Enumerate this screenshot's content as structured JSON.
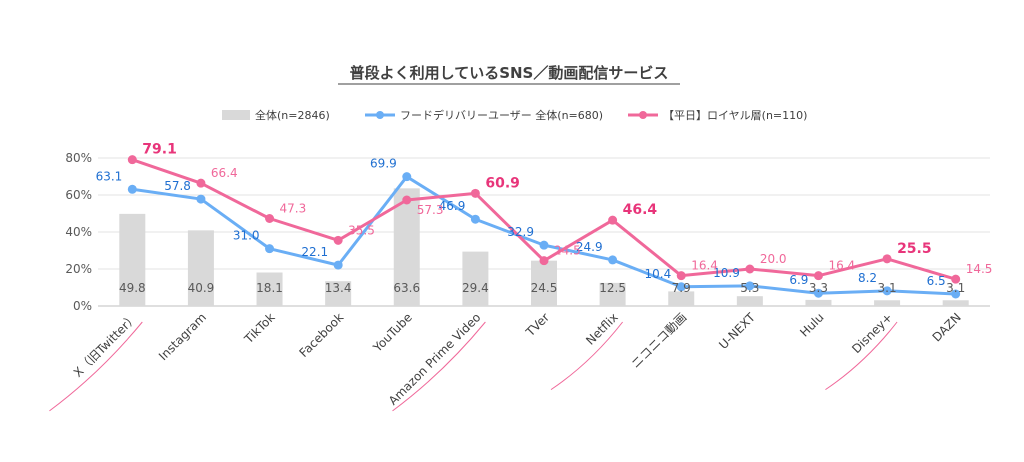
{
  "chart_data": {
    "type": "bar+line",
    "title": "普段よく利用しているSNS／動画配信サービス",
    "categories": [
      "X（旧Twitter）",
      "Instagram",
      "TikTok",
      "Facebook",
      "YouTube",
      "Amazon Prime Video",
      "TVer",
      "Netflix",
      "ニコニコ動画",
      "U-NEXT",
      "Hulu",
      "Disney+",
      "DAZN"
    ],
    "highlighted_categories": [
      "X（旧Twitter）",
      "Amazon Prime Video",
      "Netflix",
      "Disney+"
    ],
    "ylim": [
      0,
      80
    ],
    "yticks": [
      "0%",
      "20%",
      "40%",
      "60%",
      "80%"
    ],
    "grid": true,
    "legend_position": "top",
    "series": [
      {
        "name": "全体(n=2846)",
        "type": "bar",
        "color": "#d9d9d9",
        "values": [
          49.8,
          40.9,
          18.1,
          13.4,
          63.6,
          29.4,
          24.5,
          12.5,
          7.9,
          5.3,
          3.3,
          3.1,
          3.1
        ]
      },
      {
        "name": "フードデリバリーユーザー 全体(n=680)",
        "type": "line",
        "color": "#6aaef5",
        "values": [
          63.1,
          57.8,
          31.0,
          22.1,
          69.9,
          46.9,
          32.9,
          24.9,
          10.4,
          10.9,
          6.9,
          8.2,
          6.5
        ]
      },
      {
        "name": "【平日】ロイヤル層(n=110)",
        "type": "line",
        "color": "#f0689a",
        "values": [
          79.1,
          66.4,
          47.3,
          35.5,
          57.3,
          60.9,
          24.5,
          46.4,
          16.4,
          20.0,
          16.4,
          25.5,
          14.5
        ],
        "emphasized_values": [
          79.1,
          60.9,
          46.4,
          25.5
        ]
      }
    ],
    "value_labels": {
      "bar": [
        "49.8",
        "40.9",
        "18.1",
        "13.4",
        "63.6",
        "29.4",
        "24.5",
        "12.5",
        "7.9",
        "5.3",
        "3.3",
        "3.1",
        "3.1"
      ],
      "blue": [
        "63.1",
        "57.8",
        "31.0",
        "22.1",
        "69.9",
        "46.9",
        "32.9",
        "24.9",
        "10.4",
        "10.9",
        "6.9",
        "8.2",
        "6.5"
      ],
      "pink": [
        "79.1",
        "66.4",
        "47.3",
        "35.5",
        "57.3",
        "60.9",
        "24.5",
        "46.4",
        "16.4",
        "20.0",
        "16.4",
        "25.5",
        "14.5"
      ]
    }
  }
}
